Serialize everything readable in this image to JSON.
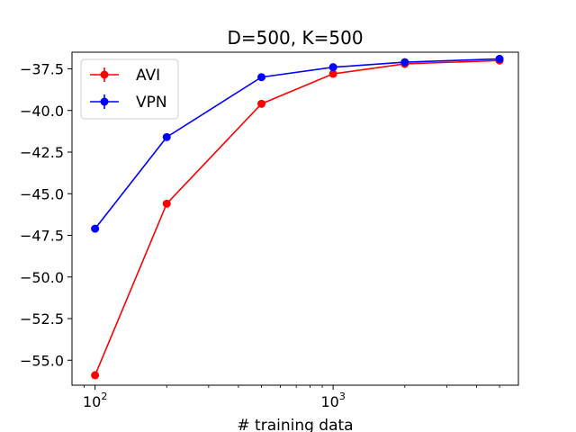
{
  "chart_data": {
    "type": "line",
    "title": "D=500, K=500",
    "xlabel": "# training data",
    "ylabel": "",
    "x_scale": "log",
    "x": [
      100,
      200,
      500,
      1000,
      2000,
      5000
    ],
    "xlim": [
      80,
      6000
    ],
    "ylim": [
      -56.5,
      -36.5
    ],
    "x_ticks": [
      {
        "value": 100,
        "base": "10",
        "exp": "2"
      },
      {
        "value": 1000,
        "base": "10",
        "exp": "3"
      }
    ],
    "y_ticks": [
      "-37.5",
      "-40.0",
      "-42.5",
      "-45.0",
      "-47.5",
      "-50.0",
      "-52.5",
      "-55.0"
    ],
    "y_tick_values": [
      -37.5,
      -40.0,
      -42.5,
      -45.0,
      -47.5,
      -50.0,
      -52.5,
      -55.0
    ],
    "legend_position": "upper-left",
    "grid": false,
    "series": [
      {
        "name": "AVI",
        "color": "#ff0000",
        "values": [
          -55.9,
          -45.6,
          -39.6,
          -37.8,
          -37.2,
          -37.0
        ]
      },
      {
        "name": "VPN",
        "color": "#0000ff",
        "values": [
          -47.1,
          -41.6,
          -38.0,
          -37.4,
          -37.1,
          -36.9
        ]
      }
    ]
  }
}
